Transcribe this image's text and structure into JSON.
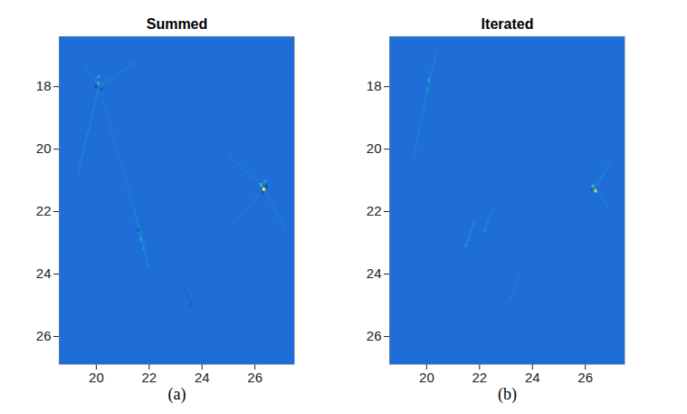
{
  "chart_data": [
    {
      "type": "heatmap",
      "title": "Summed",
      "panel_label": "(a)",
      "xlim": [
        18.6,
        27.5
      ],
      "ylim": [
        26.9,
        16.4
      ],
      "xticks": [
        20,
        22,
        24,
        26
      ],
      "yticks": [
        18,
        20,
        22,
        24,
        26
      ],
      "background": 0,
      "cell_size": 0.1,
      "color_stops": [
        {
          "value": -1,
          "color": "#2b2aa0"
        },
        {
          "value": 0,
          "color": "#1f6ed8"
        },
        {
          "value": 0.35,
          "color": "#16a9c9"
        },
        {
          "value": 0.7,
          "color": "#7fc96a"
        },
        {
          "value": 1,
          "color": "#f9fb0e"
        }
      ],
      "streaks": [
        [
          20.1,
          18.0,
          19.3,
          20.8,
          0.15
        ],
        [
          20.1,
          18.0,
          21.5,
          17.2,
          0.1
        ],
        [
          20.1,
          18.0,
          19.6,
          17.4,
          0.1
        ],
        [
          20.1,
          18.0,
          21.9,
          23.3,
          0.08
        ],
        [
          26.35,
          21.25,
          25.0,
          20.2,
          0.1
        ],
        [
          26.35,
          21.25,
          27.2,
          22.6,
          0.1
        ],
        [
          26.35,
          21.25,
          25.2,
          22.4,
          0.08
        ],
        [
          21.7,
          22.9,
          21.4,
          21.8,
          0.15
        ],
        [
          21.7,
          22.9,
          22.0,
          23.8,
          0.15
        ],
        [
          23.6,
          25.0,
          23.3,
          24.4,
          -0.2
        ]
      ],
      "cells": [
        [
          20.1,
          17.9,
          0.45
        ],
        [
          20.0,
          18.0,
          -0.6
        ],
        [
          20.2,
          18.1,
          -0.5
        ],
        [
          20.1,
          17.7,
          0.35
        ],
        [
          26.35,
          21.3,
          1
        ],
        [
          26.25,
          21.15,
          0.5
        ],
        [
          26.45,
          21.2,
          -0.6
        ],
        [
          26.3,
          21.4,
          -0.5
        ],
        [
          26.4,
          21.05,
          0.3
        ],
        [
          21.7,
          22.9,
          0.3
        ],
        [
          21.6,
          22.6,
          -0.4
        ],
        [
          21.8,
          23.2,
          0.2
        ],
        [
          23.6,
          25.0,
          -0.3
        ]
      ]
    },
    {
      "type": "heatmap",
      "title": "Iterated",
      "panel_label": "(b)",
      "xlim": [
        18.6,
        27.5
      ],
      "ylim": [
        26.9,
        16.4
      ],
      "xticks": [
        20,
        22,
        24,
        26
      ],
      "yticks": [
        18,
        20,
        22,
        24,
        26
      ],
      "background": 0,
      "cell_size": 0.1,
      "color_stops": [
        {
          "value": -1,
          "color": "#2b2aa0"
        },
        {
          "value": 0,
          "color": "#1f6ed8"
        },
        {
          "value": 0.35,
          "color": "#16a9c9"
        },
        {
          "value": 0.7,
          "color": "#7fc96a"
        },
        {
          "value": 1,
          "color": "#f9fb0e"
        }
      ],
      "streaks": [
        [
          20.1,
          17.8,
          19.5,
          20.3,
          0.12
        ],
        [
          20.1,
          17.8,
          20.4,
          16.9,
          0.12
        ],
        [
          26.35,
          21.25,
          26.9,
          20.5,
          0.15
        ],
        [
          26.35,
          21.25,
          26.9,
          21.9,
          0.12
        ],
        [
          21.5,
          23.1,
          21.8,
          22.3,
          0.18
        ],
        [
          22.2,
          22.6,
          22.5,
          21.9,
          0.15
        ],
        [
          23.2,
          24.8,
          23.5,
          23.9,
          0.08
        ]
      ],
      "cells": [
        [
          20.1,
          17.8,
          0.35
        ],
        [
          20.05,
          18.1,
          0.25
        ],
        [
          26.3,
          21.2,
          0.5
        ],
        [
          26.4,
          21.35,
          0.85
        ],
        [
          26.25,
          21.3,
          -0.3
        ],
        [
          21.5,
          23.1,
          0.2
        ],
        [
          22.2,
          22.6,
          0.2
        ],
        [
          23.2,
          24.8,
          0.1
        ]
      ]
    }
  ]
}
